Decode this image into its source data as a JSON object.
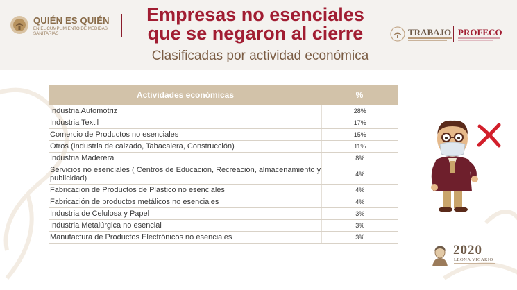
{
  "header": {
    "brand_title": "QUIÉN ES QUIÉN",
    "brand_subtitle": "EN EL CUMPLIMIENTO DE MEDIDAS SANITARIAS",
    "title_line1": "Empresas no esenciales",
    "title_line2": "que se negaron al cierre",
    "subtitle": "Clasificadas por actividad económica",
    "logo_trabajo": "TRABAJO",
    "logo_profeco": "PROFECO"
  },
  "table": {
    "col_activity": "Actividades económicas",
    "col_percent": "%",
    "rows": [
      {
        "activity": "Industria Automotriz",
        "percent": "28%"
      },
      {
        "activity": "Industria Textil",
        "percent": "17%"
      },
      {
        "activity": "Comercio de Productos no esenciales",
        "percent": "15%"
      },
      {
        "activity": "Otros (Industria de calzado, Tabacalera, Construcción)",
        "percent": "11%"
      },
      {
        "activity": "Industria Maderera",
        "percent": "8%"
      },
      {
        "activity": "Servicios no esenciales ( Centros de Educación, Recreación, almacenamiento y publicidad)",
        "percent": "4%"
      },
      {
        "activity": "Fabricación de Productos de Plástico no esenciales",
        "percent": "4%"
      },
      {
        "activity": "Fabricación de productos metálicos no esenciales",
        "percent": "4%"
      },
      {
        "activity": "Industria de Celulosa y Papel",
        "percent": "3%"
      },
      {
        "activity": "Industria Metalúrgica no esencial",
        "percent": "3%"
      },
      {
        "activity": "Manufactura de Productos Electrónicos no esenciales",
        "percent": "3%"
      }
    ]
  },
  "footer": {
    "year": "2020",
    "leona": "LEONA VICARIO"
  },
  "colors": {
    "title_red": "#a11d32",
    "table_header": "#d2c2a9",
    "brand_gold": "#8a6d4b",
    "x_red": "#d21f2b"
  },
  "icons": {
    "left_logo": "eagle-emblem-icon",
    "right_logo": "eagle-emblem-icon",
    "character": "masked-man-character",
    "cross": "red-x-icon",
    "portrait": "leona-vicario-portrait"
  }
}
